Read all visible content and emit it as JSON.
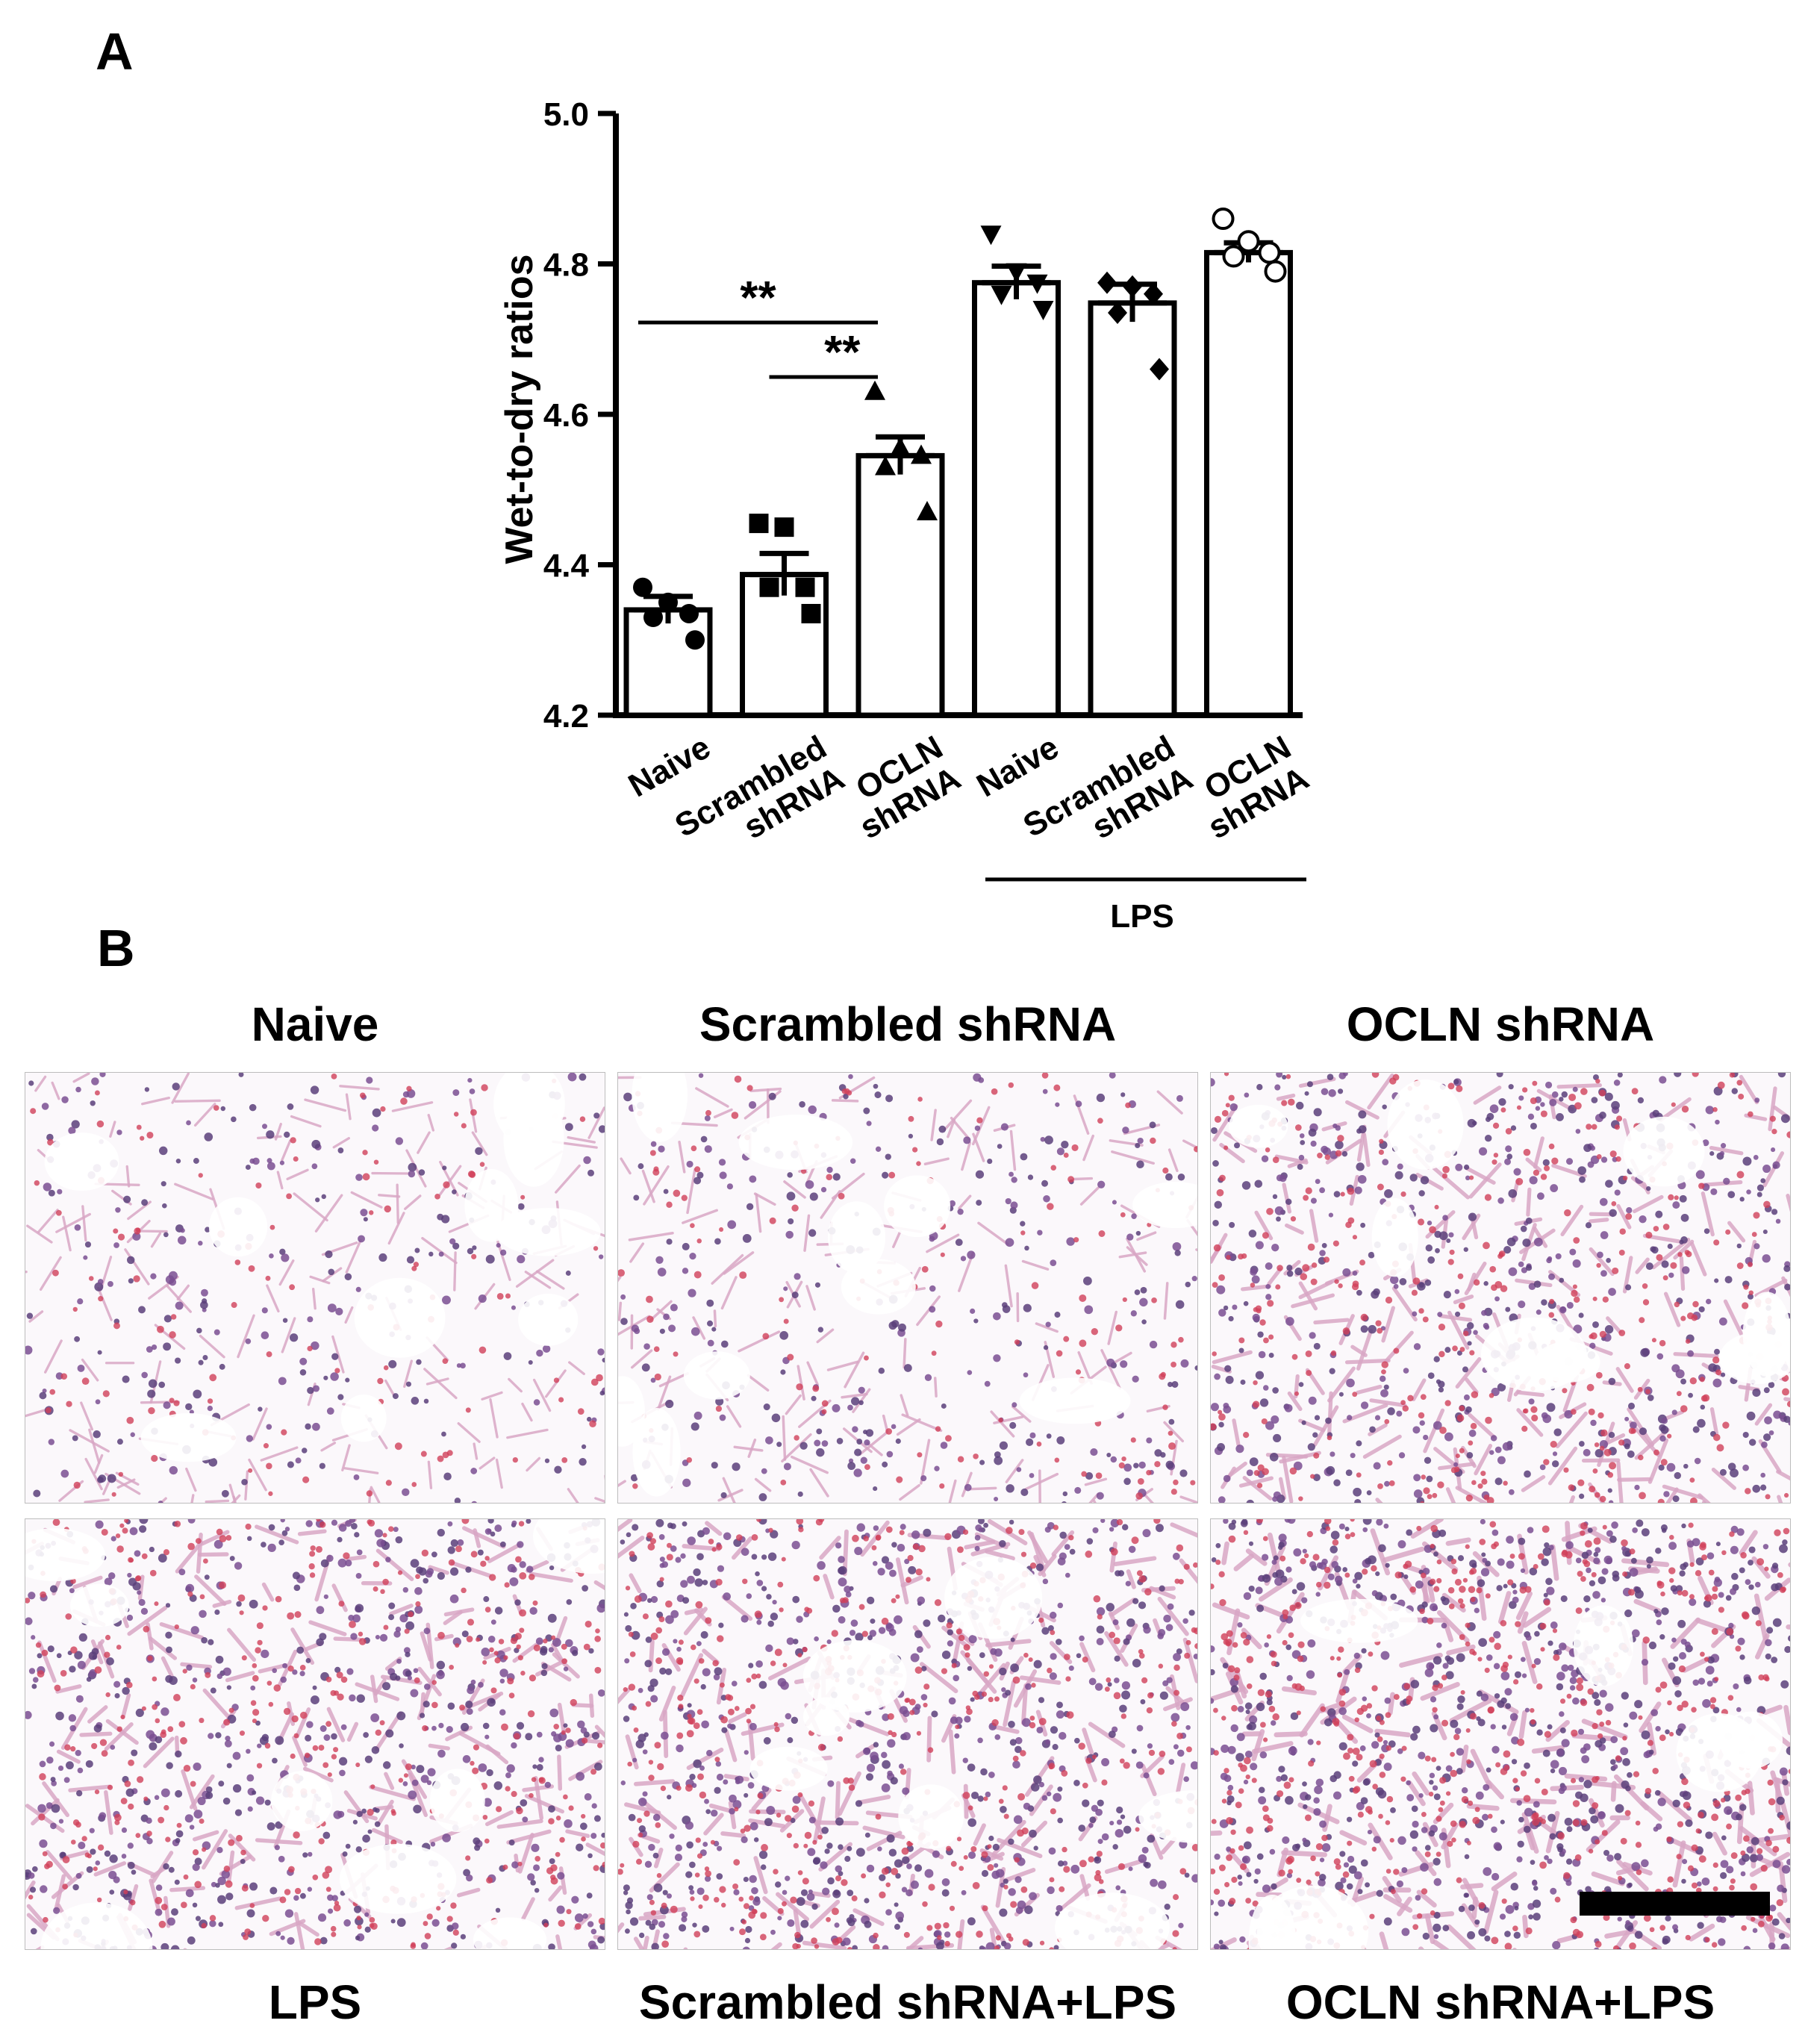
{
  "panel_a": {
    "letter": "A"
  },
  "panel_b": {
    "letter": "B",
    "images": [
      {
        "label": "Naive",
        "severity": 0.08
      },
      {
        "label": "Scrambled shRNA",
        "severity": 0.12
      },
      {
        "label": "OCLN shRNA",
        "severity": 0.55
      },
      {
        "label": "LPS",
        "severity": 0.6
      },
      {
        "label": "Scrambled shRNA+LPS",
        "severity": 0.7
      },
      {
        "label": "OCLN shRNA+LPS",
        "severity": 0.9
      }
    ]
  },
  "chart_data": {
    "type": "bar",
    "ylabel": "Wet-to-dry ratios",
    "ylim": [
      4.2,
      5.0
    ],
    "yticks": [
      "4.2",
      "4.4",
      "4.6",
      "4.8",
      "5.0"
    ],
    "categories": [
      {
        "lines": [
          "Naive"
        ]
      },
      {
        "lines": [
          "Scrambled",
          "shRNA"
        ]
      },
      {
        "lines": [
          "OCLN",
          "shRNA"
        ]
      },
      {
        "lines": [
          "Naive"
        ]
      },
      {
        "lines": [
          "Scrambled",
          "shRNA"
        ]
      },
      {
        "lines": [
          "OCLN",
          "shRNA"
        ]
      }
    ],
    "group_label": "LPS",
    "means": [
      4.34,
      4.387,
      4.545,
      4.775,
      4.748,
      4.815
    ],
    "sem": [
      0.018,
      0.028,
      0.025,
      0.022,
      0.025,
      0.013
    ],
    "markers": [
      "circle",
      "square",
      "triangle-up",
      "triangle-down",
      "diamond",
      "circle-open"
    ],
    "points": [
      [
        4.37,
        4.35,
        4.335,
        4.33,
        4.3
      ],
      [
        4.455,
        4.45,
        4.37,
        4.37,
        4.335
      ],
      [
        4.63,
        4.555,
        4.545,
        4.53,
        4.47
      ],
      [
        4.84,
        4.79,
        4.775,
        4.76,
        4.74
      ],
      [
        4.775,
        4.77,
        4.76,
        4.735,
        4.66
      ],
      [
        4.86,
        4.83,
        4.815,
        4.81,
        4.79
      ]
    ],
    "significance": [
      {
        "from": 0,
        "to": 2,
        "label": "**"
      },
      {
        "from": 1,
        "to": 2,
        "label": "**"
      }
    ]
  }
}
